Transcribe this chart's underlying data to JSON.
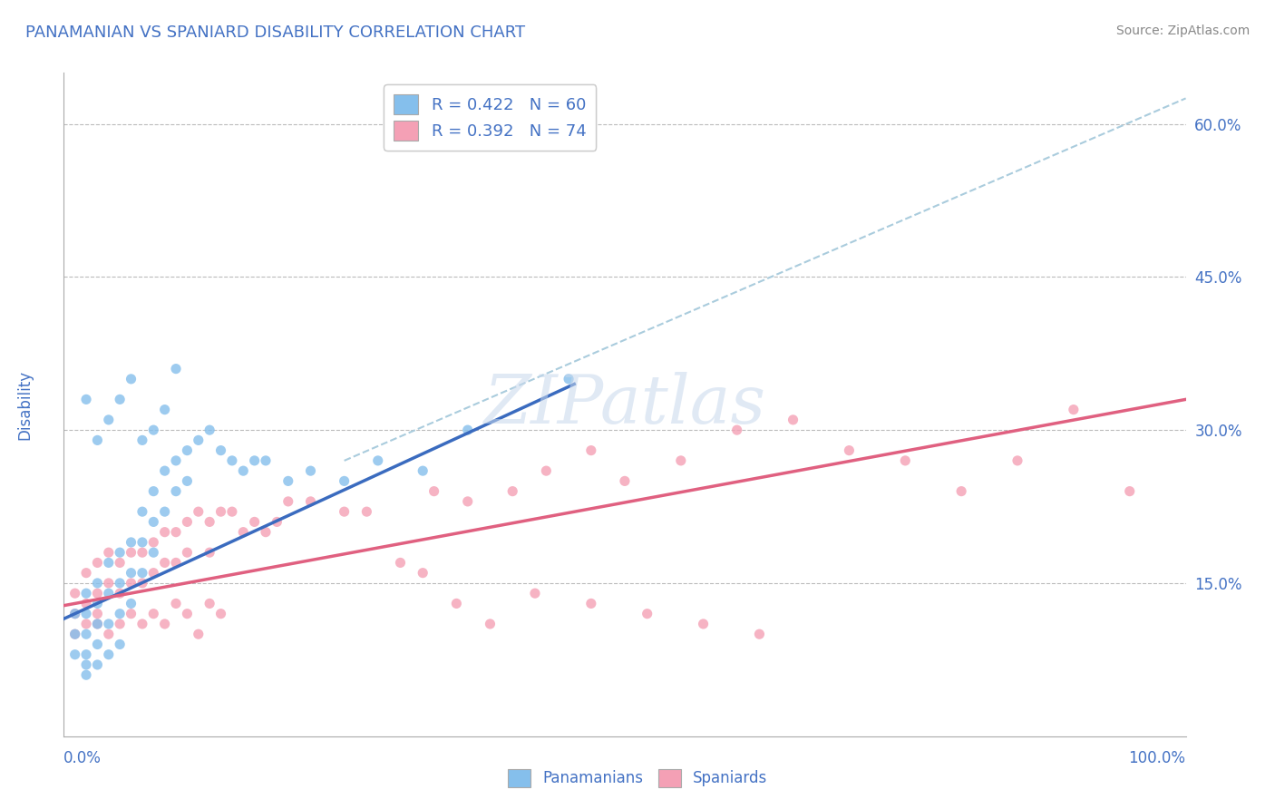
{
  "title": "PANAMANIAN VS SPANIARD DISABILITY CORRELATION CHART",
  "source": "Source: ZipAtlas.com",
  "ylabel": "Disability",
  "xlim": [
    0.0,
    1.0
  ],
  "ylim": [
    0.0,
    0.65
  ],
  "panamanian_color": "#85BFEC",
  "spaniard_color": "#F4A0B5",
  "panamanian_line_color": "#3A6BBF",
  "spaniard_line_color": "#E06080",
  "panamanian_R": 0.422,
  "panamanian_N": 60,
  "spaniard_R": 0.392,
  "spaniard_N": 74,
  "legend_label_1": "R = 0.422   N = 60",
  "legend_label_2": "R = 0.392   N = 74",
  "legend_label_pan": "Panamanians",
  "legend_label_spa": "Spaniards",
  "background_color": "#FFFFFF",
  "grid_color": "#BBBBBB",
  "title_color": "#4472C4",
  "axis_label_color": "#4472C4",
  "watermark_color": "#C8D8EC",
  "right_ytick_positions": [
    0.15,
    0.3,
    0.45,
    0.6
  ],
  "right_ytick_labels": [
    "15.0%",
    "30.0%",
    "45.0%",
    "60.0%"
  ],
  "pan_x": [
    0.01,
    0.01,
    0.01,
    0.02,
    0.02,
    0.02,
    0.02,
    0.02,
    0.02,
    0.03,
    0.03,
    0.03,
    0.03,
    0.03,
    0.04,
    0.04,
    0.04,
    0.04,
    0.05,
    0.05,
    0.05,
    0.05,
    0.06,
    0.06,
    0.06,
    0.07,
    0.07,
    0.07,
    0.08,
    0.08,
    0.08,
    0.09,
    0.09,
    0.1,
    0.1,
    0.11,
    0.11,
    0.12,
    0.13,
    0.14,
    0.15,
    0.16,
    0.17,
    0.18,
    0.2,
    0.22,
    0.25,
    0.28,
    0.32,
    0.36,
    0.02,
    0.03,
    0.04,
    0.05,
    0.06,
    0.07,
    0.08,
    0.09,
    0.1,
    0.45
  ],
  "pan_y": [
    0.12,
    0.1,
    0.08,
    0.14,
    0.12,
    0.1,
    0.08,
    0.07,
    0.06,
    0.15,
    0.13,
    0.11,
    0.09,
    0.07,
    0.17,
    0.14,
    0.11,
    0.08,
    0.18,
    0.15,
    0.12,
    0.09,
    0.19,
    0.16,
    0.13,
    0.22,
    0.19,
    0.16,
    0.24,
    0.21,
    0.18,
    0.26,
    0.22,
    0.27,
    0.24,
    0.28,
    0.25,
    0.29,
    0.3,
    0.28,
    0.27,
    0.26,
    0.27,
    0.27,
    0.25,
    0.26,
    0.25,
    0.27,
    0.26,
    0.3,
    0.33,
    0.29,
    0.31,
    0.33,
    0.35,
    0.29,
    0.3,
    0.32,
    0.36,
    0.35
  ],
  "spa_x": [
    0.01,
    0.01,
    0.01,
    0.02,
    0.02,
    0.02,
    0.03,
    0.03,
    0.03,
    0.04,
    0.04,
    0.05,
    0.05,
    0.06,
    0.06,
    0.07,
    0.07,
    0.08,
    0.08,
    0.09,
    0.09,
    0.1,
    0.1,
    0.11,
    0.11,
    0.12,
    0.13,
    0.13,
    0.14,
    0.15,
    0.16,
    0.17,
    0.18,
    0.19,
    0.2,
    0.22,
    0.25,
    0.27,
    0.3,
    0.33,
    0.36,
    0.4,
    0.43,
    0.47,
    0.5,
    0.55,
    0.6,
    0.65,
    0.7,
    0.75,
    0.8,
    0.85,
    0.9,
    0.95,
    0.03,
    0.04,
    0.05,
    0.06,
    0.07,
    0.08,
    0.09,
    0.1,
    0.11,
    0.12,
    0.13,
    0.14,
    0.32,
    0.35,
    0.38,
    0.42,
    0.47,
    0.52,
    0.57,
    0.62
  ],
  "spa_y": [
    0.14,
    0.12,
    0.1,
    0.16,
    0.13,
    0.11,
    0.17,
    0.14,
    0.12,
    0.18,
    0.15,
    0.17,
    0.14,
    0.18,
    0.15,
    0.18,
    0.15,
    0.19,
    0.16,
    0.2,
    0.17,
    0.2,
    0.17,
    0.21,
    0.18,
    0.22,
    0.21,
    0.18,
    0.22,
    0.22,
    0.2,
    0.21,
    0.2,
    0.21,
    0.23,
    0.23,
    0.22,
    0.22,
    0.17,
    0.24,
    0.23,
    0.24,
    0.26,
    0.28,
    0.25,
    0.27,
    0.3,
    0.31,
    0.28,
    0.27,
    0.24,
    0.27,
    0.32,
    0.24,
    0.11,
    0.1,
    0.11,
    0.12,
    0.11,
    0.12,
    0.11,
    0.13,
    0.12,
    0.1,
    0.13,
    0.12,
    0.16,
    0.13,
    0.11,
    0.14,
    0.13,
    0.12,
    0.11,
    0.1
  ],
  "pan_trendline_x": [
    0.0,
    0.455
  ],
  "pan_trendline_y": [
    0.115,
    0.345
  ],
  "spa_trendline_x": [
    0.0,
    1.0
  ],
  "spa_trendline_y": [
    0.128,
    0.33
  ],
  "dash_line_x": [
    0.25,
    1.0
  ],
  "dash_line_y": [
    0.27,
    0.625
  ]
}
